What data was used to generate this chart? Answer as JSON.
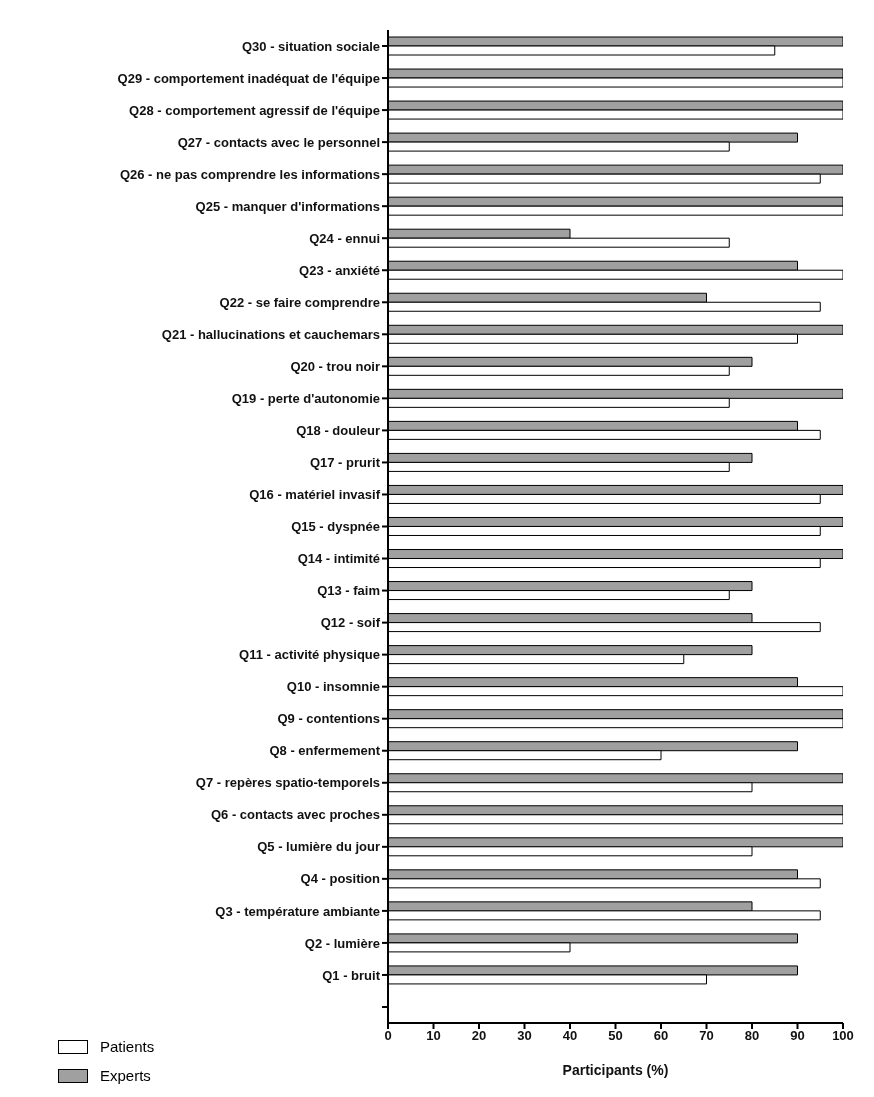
{
  "chart_data": {
    "type": "bar",
    "orientation": "horizontal",
    "xlabel": "Participants (%)",
    "categories": [
      "Q30 - situation sociale",
      "Q29 - comportement inadéquat de l'équipe",
      "Q28 - comportement agressif de l'équipe",
      "Q27 - contacts avec le personnel",
      "Q26 - ne pas comprendre les informations",
      "Q25 - manquer d'informations",
      "Q24 - ennui",
      "Q23 - anxiété",
      "Q22 - se faire comprendre",
      "Q21 - hallucinations et cauchemars",
      "Q20 - trou noir",
      "Q19 - perte d'autonomie",
      "Q18 - douleur",
      "Q17 - prurit",
      "Q16 - matériel invasif",
      "Q15 - dyspnée",
      "Q14 - intimité",
      "Q13 - faim",
      "Q12 - soif",
      "Q11 - activité physique",
      "Q10 - insomnie",
      "Q9 - contentions",
      "Q8 - enfermement",
      "Q7 - repères spatio-temporels",
      "Q6 - contacts avec proches",
      "Q5 - lumière du jour",
      "Q4 - position",
      "Q3 - température ambiante",
      "Q2 - lumière",
      "Q1 - bruit",
      null
    ],
    "series": [
      {
        "name": "Experts",
        "color": "#a0a0a0",
        "values": [
          100,
          100,
          100,
          90,
          100,
          100,
          40,
          90,
          70,
          100,
          80,
          100,
          90,
          80,
          100,
          100,
          100,
          80,
          80,
          80,
          90,
          100,
          90,
          100,
          100,
          100,
          90,
          80,
          90,
          90,
          null
        ]
      },
      {
        "name": "Patients",
        "color": "#ffffff",
        "values": [
          85,
          100,
          100,
          75,
          95,
          100,
          75,
          100,
          95,
          90,
          75,
          75,
          95,
          75,
          95,
          95,
          95,
          75,
          95,
          65,
          100,
          100,
          60,
          80,
          100,
          80,
          95,
          95,
          40,
          70,
          null
        ]
      }
    ],
    "xlim": [
      0,
      100
    ],
    "xticks": [
      0,
      10,
      20,
      30,
      40,
      50,
      60,
      70,
      80,
      90,
      100
    ],
    "grid": false,
    "legend": "bottom left"
  }
}
